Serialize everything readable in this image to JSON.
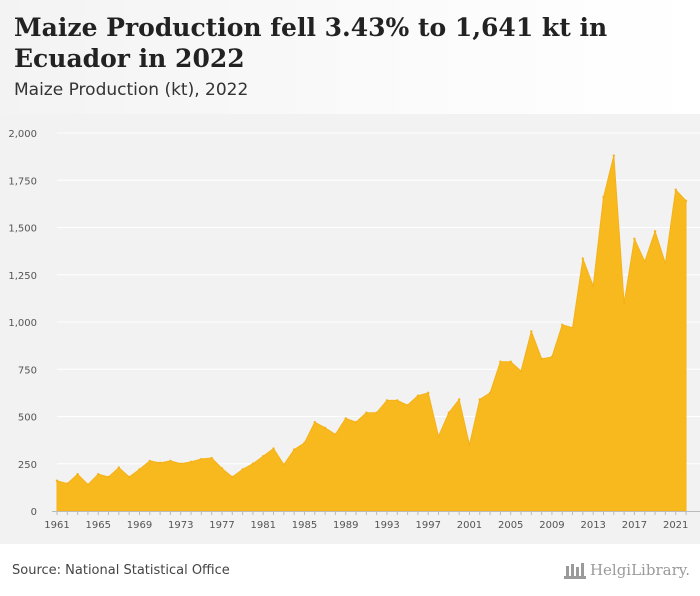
{
  "header": {
    "title": "Maize Production fell 3.43% to 1,641 kt in Ecuador in 2022",
    "subtitle": "Maize Production (kt), 2022"
  },
  "footer": {
    "source": "Source: National Statistical Office",
    "logo_text": "HelgiLibrary."
  },
  "colors": {
    "area_fill": "#f8b91e",
    "area_stroke": "#f4b21a",
    "gridline": "#ffffff",
    "background": "#f2f2f2"
  },
  "chart_data": {
    "type": "area",
    "title": "Maize Production (kt), 2022",
    "xlabel": "",
    "ylabel": "",
    "ylim": [
      0,
      2000
    ],
    "yticks": [
      0,
      250,
      500,
      750,
      1000,
      1250,
      1500,
      1750,
      2000
    ],
    "ytick_labels": [
      "0",
      "250",
      "500",
      "750",
      "1,000",
      "1,250",
      "1,500",
      "1,750",
      "2,000"
    ],
    "xticks": [
      1961,
      1965,
      1969,
      1973,
      1977,
      1981,
      1985,
      1989,
      1993,
      1997,
      2001,
      2005,
      2009,
      2013,
      2017,
      2021
    ],
    "grid": true,
    "x": [
      1961,
      1962,
      1963,
      1964,
      1965,
      1966,
      1967,
      1968,
      1969,
      1970,
      1971,
      1972,
      1973,
      1974,
      1975,
      1976,
      1977,
      1978,
      1979,
      1980,
      1981,
      1982,
      1983,
      1984,
      1985,
      1986,
      1987,
      1988,
      1989,
      1990,
      1991,
      1992,
      1993,
      1994,
      1995,
      1996,
      1997,
      1998,
      1999,
      2000,
      2001,
      2002,
      2003,
      2004,
      2005,
      2006,
      2007,
      2008,
      2009,
      2010,
      2011,
      2012,
      2013,
      2014,
      2015,
      2016,
      2017,
      2018,
      2019,
      2020,
      2021,
      2022
    ],
    "values": [
      160,
      145,
      195,
      140,
      195,
      180,
      230,
      180,
      220,
      265,
      255,
      265,
      250,
      260,
      275,
      280,
      225,
      180,
      220,
      250,
      290,
      330,
      245,
      325,
      360,
      470,
      440,
      405,
      490,
      470,
      520,
      520,
      585,
      585,
      560,
      610,
      625,
      395,
      520,
      590,
      350,
      590,
      625,
      790,
      790,
      740,
      950,
      805,
      815,
      985,
      970,
      1335,
      1190,
      1660,
      1880,
      1100,
      1440,
      1320,
      1480,
      1310,
      1700,
      1641
    ]
  }
}
